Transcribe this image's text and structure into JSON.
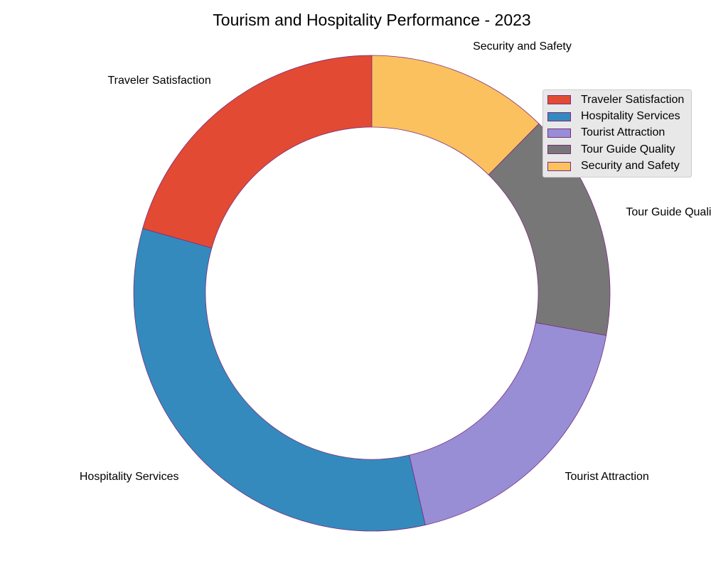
{
  "chart_data": {
    "type": "pie",
    "variant": "donut",
    "title": "Tourism and Hospitality Performance - 2023",
    "categories": [
      "Traveler Satisfaction",
      "Hospitality Services",
      "Tourist Attraction",
      "Tour Guide Quality",
      "Security and Safety"
    ],
    "values": [
      20,
      32,
      18,
      15,
      12
    ],
    "colors": [
      "#e24a33",
      "#348abd",
      "#988ed5",
      "#777777",
      "#fbc15e"
    ],
    "edge_color": "#7b2d7f",
    "start_angle_deg": 90,
    "direction": "counterclockwise",
    "legend": {
      "placement": "top-right",
      "entries": [
        "Traveler Satisfaction",
        "Hospitality Services",
        "Tourist Attraction",
        "Tour Guide Quality",
        "Security and Safety"
      ]
    }
  }
}
